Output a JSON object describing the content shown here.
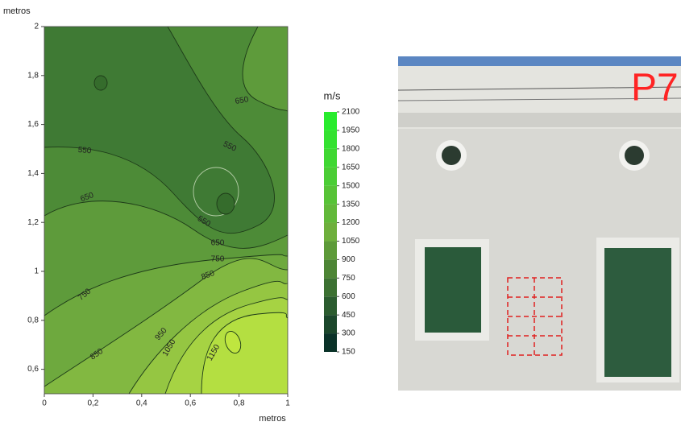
{
  "chart_data": {
    "type": "contour",
    "x_label": "metros",
    "y_label": "metros",
    "xlim": [
      0,
      1
    ],
    "ylim": [
      0.5,
      2
    ],
    "xticks": [
      0,
      {
        "value": 0.2,
        "label": "0,2"
      },
      {
        "value": 0.4,
        "label": "0,4"
      },
      {
        "value": 0.6,
        "label": "0,6"
      },
      {
        "value": 0.8,
        "label": "0,8"
      },
      1
    ],
    "yticks": [
      {
        "value": 0.6,
        "label": "0,6"
      },
      {
        "value": 0.8,
        "label": "0,8"
      },
      1,
      {
        "value": 1.2,
        "label": "1,2"
      },
      {
        "value": 1.4,
        "label": "1,4"
      },
      {
        "value": 1.6,
        "label": "1,6"
      },
      {
        "value": 1.8,
        "label": "1,8"
      },
      2
    ],
    "contour_levels": [
      550,
      650,
      750,
      850,
      950,
      1050,
      1150
    ],
    "colorbar_label": "m/s",
    "colorbar_ticks": [
      150,
      300,
      450,
      600,
      750,
      900,
      1050,
      1200,
      1350,
      1500,
      1650,
      1800,
      1950,
      2100
    ]
  },
  "photo": {
    "label": "P7"
  }
}
